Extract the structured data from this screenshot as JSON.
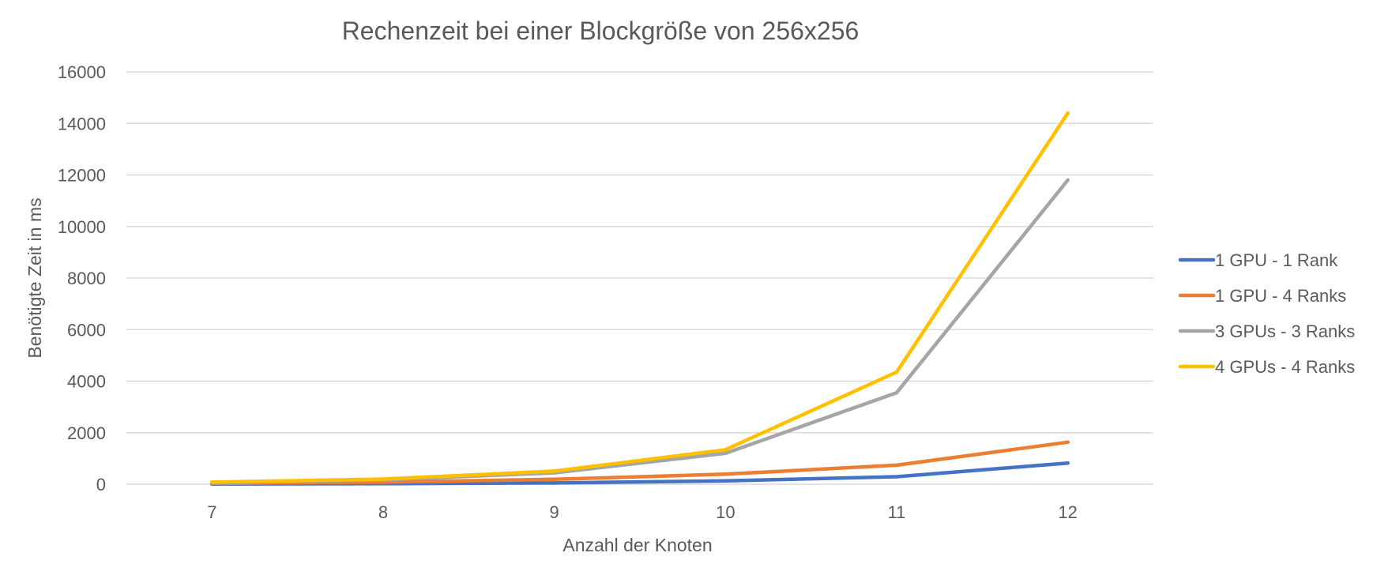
{
  "chart_data": {
    "type": "line",
    "title": "Rechenzeit bei einer Blockgröße von 256x256",
    "xlabel": "Anzahl der Knoten",
    "ylabel": "Benötigte Zeit in ms",
    "categories": [
      "7",
      "8",
      "9",
      "10",
      "11",
      "12"
    ],
    "ylim": [
      0,
      16000
    ],
    "yticks": [
      "0",
      "2000",
      "4000",
      "6000",
      "8000",
      "10000",
      "12000",
      "14000",
      "16000"
    ],
    "grid": true,
    "legend_position": "right",
    "series": [
      {
        "name": "1 GPU - 1 Rank",
        "color": "#4472C4",
        "values": [
          10,
          20,
          50,
          130,
          290,
          820
        ]
      },
      {
        "name": "1 GPU - 4 Ranks",
        "color": "#ED7D31",
        "values": [
          30,
          80,
          190,
          390,
          740,
          1630
        ]
      },
      {
        "name": "3 GPUs - 3 Ranks",
        "color": "#A5A5A5",
        "values": [
          60,
          170,
          440,
          1200,
          3550,
          11800
        ]
      },
      {
        "name": "4 GPUs - 4 Ranks",
        "color": "#FFC000",
        "values": [
          80,
          200,
          510,
          1340,
          4350,
          14400
        ]
      }
    ]
  }
}
